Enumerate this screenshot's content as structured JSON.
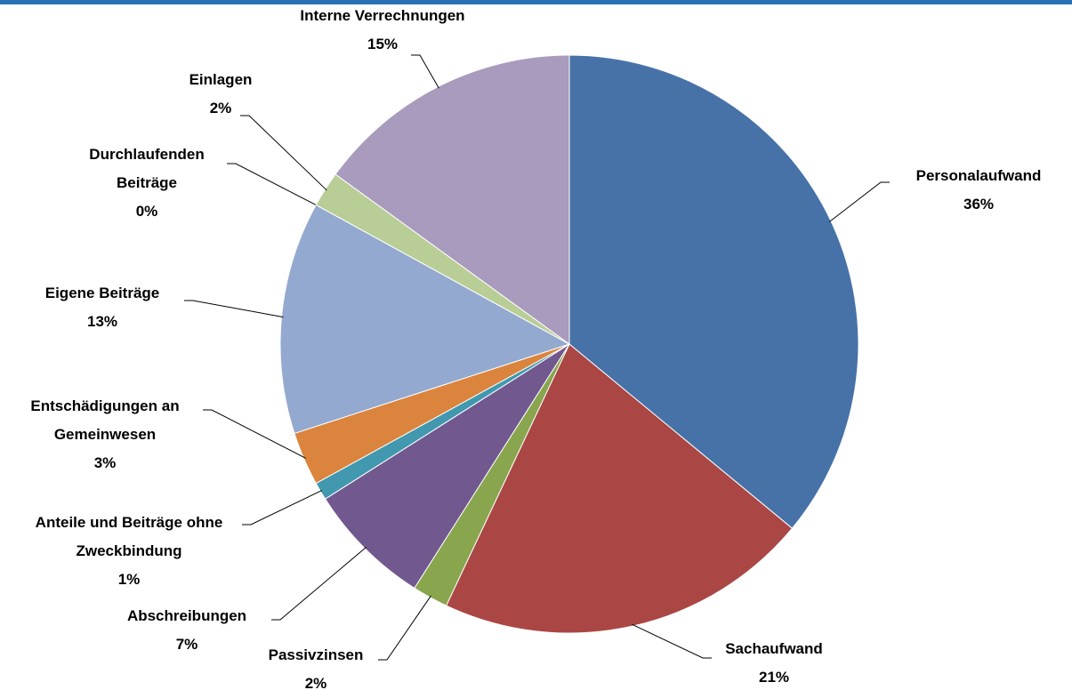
{
  "chart_data": {
    "type": "pie",
    "categories": [
      "Personalaufwand",
      "Sachaufwand",
      "Passivzinsen",
      "Abschreibungen",
      "Anteile und Beiträge ohne Zweckbindung",
      "Entschädigungen an Gemeinwesen",
      "Eigene Beiträge",
      "Durchlaufenden Beiträge",
      "Einlagen",
      "Interne Verrechnungen"
    ],
    "values": [
      36,
      21,
      2,
      7,
      1,
      3,
      13,
      0,
      2,
      15
    ],
    "value_labels": [
      "36%",
      "21%",
      "2%",
      "7%",
      "1%",
      "3%",
      "13%",
      "0%",
      "2%",
      "15%"
    ],
    "colors": [
      "#4672a8",
      "#aa4744",
      "#89a54e",
      "#71588f",
      "#4198af",
      "#db843d",
      "#93a9cf",
      "#d19392",
      "#b9cd96",
      "#a99bbd"
    ]
  }
}
